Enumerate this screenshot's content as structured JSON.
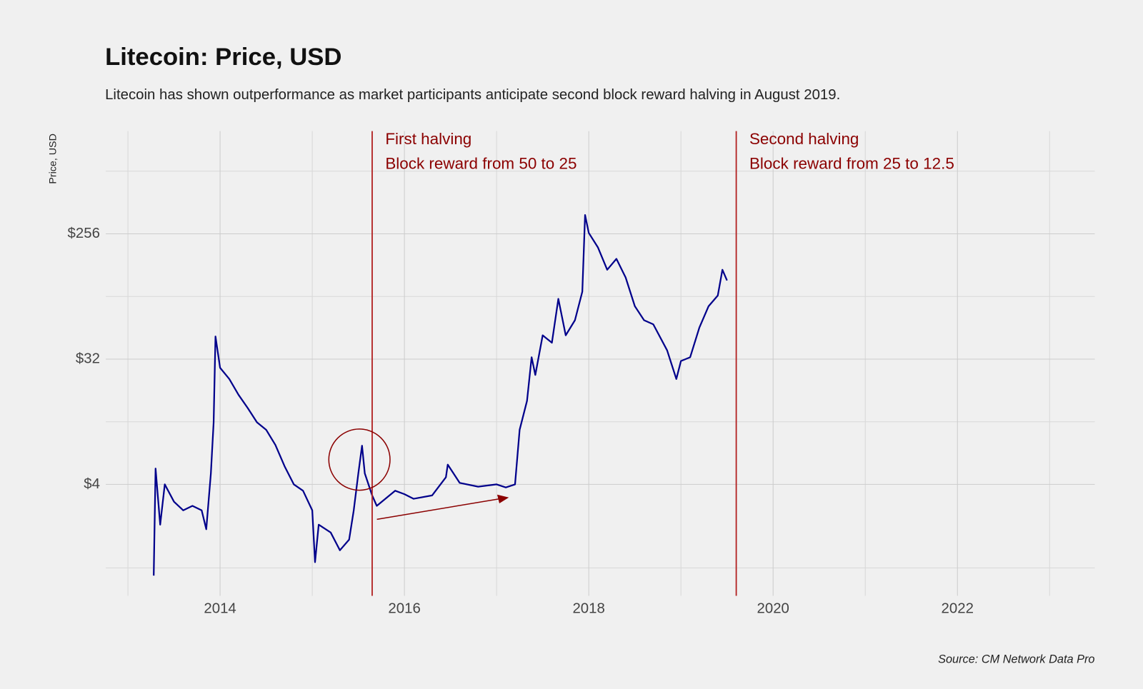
{
  "chart_data": {
    "type": "line",
    "title": "Litecoin: Price, USD",
    "subtitle": "Litecoin has shown outperformance as market participants anticipate second block reward halving in August 2019.",
    "y_label": "Price, USD",
    "source": "Source: CM Network Data Pro",
    "color": "#00008b",
    "y_scale": "log2",
    "grid": true,
    "xlim": [
      2012.76,
      2023.49
    ],
    "xticks": [
      2014,
      2016,
      2018,
      2020,
      2022
    ],
    "x_minor_ticks": [
      2013,
      2015,
      2017,
      2019,
      2021,
      2023
    ],
    "ylim": [
      0.629,
      1408
    ],
    "yticks": [
      {
        "value": 4,
        "label": "$4"
      },
      {
        "value": 32,
        "label": "$32"
      },
      {
        "value": 256,
        "label": "$256"
      }
    ],
    "y_minor_ticks": [
      1,
      11.31,
      90.51,
      724.08
    ],
    "x": [
      2013.28,
      2013.3,
      2013.35,
      2013.4,
      2013.5,
      2013.6,
      2013.7,
      2013.8,
      2013.85,
      2013.9,
      2013.93,
      2013.95,
      2014.0,
      2014.1,
      2014.2,
      2014.3,
      2014.4,
      2014.5,
      2014.6,
      2014.7,
      2014.8,
      2014.9,
      2015.0,
      2015.03,
      2015.07,
      2015.2,
      2015.3,
      2015.4,
      2015.45,
      2015.5,
      2015.54,
      2015.57,
      2015.65,
      2015.7,
      2015.9,
      2016.0,
      2016.1,
      2016.3,
      2016.45,
      2016.47,
      2016.6,
      2016.8,
      2017.0,
      2017.1,
      2017.2,
      2017.25,
      2017.33,
      2017.38,
      2017.42,
      2017.5,
      2017.6,
      2017.67,
      2017.75,
      2017.85,
      2017.93,
      2017.96,
      2018.0,
      2018.1,
      2018.2,
      2018.3,
      2018.4,
      2018.5,
      2018.6,
      2018.7,
      2018.85,
      2018.95,
      2019.0,
      2019.1,
      2019.2,
      2019.3,
      2019.4,
      2019.45,
      2019.5
    ],
    "values": [
      0.88,
      5.2,
      2.05,
      4,
      3.0,
      2.6,
      2.8,
      2.6,
      1.9,
      4.8,
      11.2,
      46.6,
      27.7,
      23,
      17.7,
      14.2,
      11.2,
      9.9,
      7.7,
      5.4,
      4,
      3.6,
      2.6,
      1.1,
      2.05,
      1.8,
      1.34,
      1.6,
      2.6,
      4.8,
      7.6,
      4.8,
      3.33,
      2.8,
      3.6,
      3.4,
      3.15,
      3.33,
      4.5,
      5.55,
      4.1,
      3.85,
      4,
      3.8,
      4,
      9.9,
      16,
      33,
      24.6,
      47.5,
      42,
      87,
      47.5,
      61,
      98,
      350,
      260,
      204,
      141,
      169,
      124,
      77,
      61,
      57,
      37,
      23,
      31,
      33,
      54,
      77,
      92,
      141,
      118
    ],
    "halvings": [
      {
        "x": 2015.65,
        "color": "#b22222",
        "lines": [
          "First halving",
          "Block reward from 50 to 25"
        ]
      },
      {
        "x": 2019.6,
        "color": "#b22222",
        "lines": [
          "Second halving",
          "Block reward from 25 to 12.5"
        ]
      }
    ]
  }
}
